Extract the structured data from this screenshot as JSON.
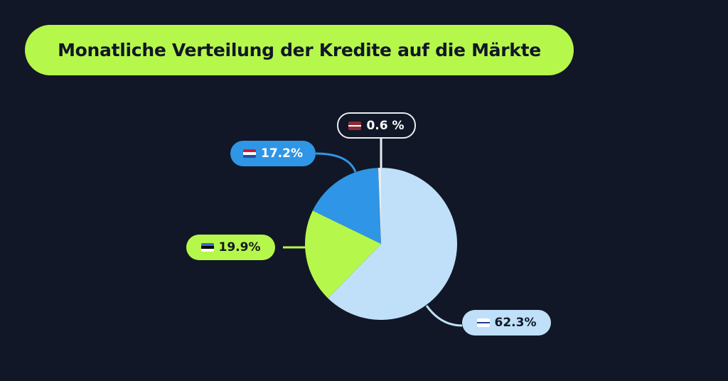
{
  "title": "Monatliche Verteilung der Kredite auf die Märkte",
  "chart_data": {
    "type": "pie",
    "title": "Monatliche Verteilung der Kredite auf die Märkte",
    "slices": [
      {
        "flag": "finland-flag-icon",
        "value": 62.3,
        "label": "62.3%",
        "color": "#bfe0f8"
      },
      {
        "flag": "estonia-flag-icon",
        "value": 19.9,
        "label": "19.9%",
        "color": "#b6f74b"
      },
      {
        "flag": "netherlands-flag-icon",
        "value": 17.2,
        "label": "17.2%",
        "color": "#2f95e6"
      },
      {
        "flag": "latvia-flag-icon",
        "value": 0.6,
        "label": "0.6 %",
        "color": "#e8edf2"
      }
    ]
  },
  "colors": {
    "background": "#111726",
    "accent": "#b6f74b"
  }
}
